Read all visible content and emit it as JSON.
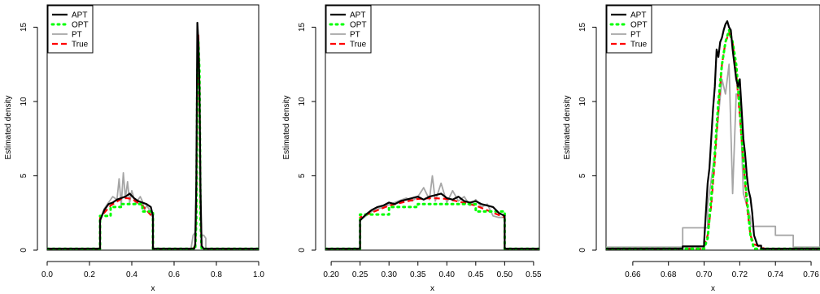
{
  "chart_data": [
    {
      "type": "line",
      "xlabel": "x",
      "ylabel": "Estimated density",
      "xlim": [
        0.0,
        1.0
      ],
      "ylim": [
        0,
        16.5
      ],
      "xticks": [
        "0.0",
        "0.2",
        "0.4",
        "0.6",
        "0.8",
        "1.0"
      ],
      "yticks": [
        "0",
        "5",
        "10",
        "15"
      ],
      "legend": {
        "position": "top-left",
        "entries": [
          "APT",
          "OPT",
          "PT",
          "True"
        ]
      },
      "series": [
        {
          "name": "PT",
          "color": "#a6a6a6",
          "style": "solid",
          "x": [
            0.0,
            0.25,
            0.25,
            0.27,
            0.29,
            0.31,
            0.33,
            0.34,
            0.35,
            0.36,
            0.37,
            0.38,
            0.39,
            0.4,
            0.41,
            0.42,
            0.43,
            0.44,
            0.45,
            0.46,
            0.47,
            0.48,
            0.49,
            0.5,
            0.5,
            0.68,
            0.69,
            0.7,
            0.705,
            0.71,
            0.715,
            0.72,
            0.725,
            0.73,
            0.74,
            0.75,
            0.75,
            1.0
          ],
          "y": [
            0.1,
            0.1,
            2.0,
            2.8,
            3.2,
            3.6,
            3.4,
            4.8,
            3.0,
            5.2,
            3.5,
            4.6,
            3.2,
            4.0,
            3.5,
            3.1,
            3.4,
            3.6,
            3.3,
            2.7,
            3.0,
            2.8,
            2.4,
            2.2,
            0.1,
            0.1,
            1.0,
            1.2,
            4.0,
            12.5,
            12.0,
            10.0,
            2.5,
            1.0,
            1.0,
            0.8,
            0.1,
            0.1
          ]
        },
        {
          "name": "True",
          "color": "#ff0000",
          "style": "dashed",
          "x": [
            0.0,
            0.25,
            0.25,
            0.3,
            0.35,
            0.375,
            0.4,
            0.45,
            0.5,
            0.5,
            0.69,
            0.7,
            0.705,
            0.71,
            0.715,
            0.72,
            0.725,
            0.73,
            0.74,
            1.0
          ],
          "y": [
            0.1,
            0.1,
            2.2,
            3.0,
            3.45,
            3.5,
            3.45,
            3.0,
            2.2,
            0.1,
            0.1,
            0.3,
            3.0,
            11.0,
            14.5,
            11.0,
            3.0,
            0.3,
            0.1,
            0.1
          ]
        },
        {
          "name": "OPT",
          "color": "#00ff00",
          "style": "dotted",
          "x": [
            0.0,
            0.25,
            0.25,
            0.3,
            0.3,
            0.35,
            0.35,
            0.45,
            0.45,
            0.5,
            0.5,
            0.7,
            0.705,
            0.71,
            0.715,
            0.72,
            0.725,
            0.73,
            1.0
          ],
          "y": [
            0.1,
            0.1,
            2.3,
            2.3,
            2.9,
            2.9,
            3.1,
            3.1,
            2.6,
            2.6,
            0.1,
            0.1,
            2.0,
            12.0,
            14.0,
            12.0,
            2.0,
            0.1,
            0.1
          ]
        },
        {
          "name": "APT",
          "color": "#000000",
          "style": "solid",
          "x": [
            0.0,
            0.25,
            0.25,
            0.27,
            0.29,
            0.31,
            0.33,
            0.35,
            0.37,
            0.39,
            0.41,
            0.43,
            0.45,
            0.47,
            0.49,
            0.5,
            0.5,
            0.695,
            0.7,
            0.705,
            0.71,
            0.715,
            0.72,
            0.725,
            0.73,
            0.74,
            1.0
          ],
          "y": [
            0.1,
            0.1,
            2.0,
            2.7,
            3.1,
            3.2,
            3.4,
            3.5,
            3.6,
            3.8,
            3.5,
            3.3,
            3.2,
            3.1,
            2.9,
            2.3,
            0.1,
            0.1,
            0.4,
            4.5,
            15.3,
            14.0,
            11.0,
            4.0,
            0.3,
            0.1,
            0.1
          ]
        }
      ]
    },
    {
      "type": "line",
      "xlabel": "x",
      "ylabel": "Estimated density",
      "xlim": [
        0.19,
        0.56
      ],
      "ylim": [
        0,
        16.5
      ],
      "xticks": [
        "0.20",
        "0.25",
        "0.30",
        "0.35",
        "0.40",
        "0.45",
        "0.50",
        "0.55"
      ],
      "yticks": [
        "0",
        "5",
        "10",
        "15"
      ],
      "legend": {
        "position": "top-left",
        "entries": [
          "APT",
          "OPT",
          "PT",
          "True"
        ]
      },
      "series": [
        {
          "name": "PT",
          "color": "#a6a6a6",
          "style": "solid",
          "x": [
            0.19,
            0.25,
            0.25,
            0.27,
            0.29,
            0.31,
            0.33,
            0.34,
            0.35,
            0.36,
            0.37,
            0.375,
            0.38,
            0.39,
            0.4,
            0.41,
            0.42,
            0.43,
            0.44,
            0.45,
            0.46,
            0.47,
            0.48,
            0.49,
            0.5,
            0.5,
            0.56
          ],
          "y": [
            0.1,
            0.1,
            2.0,
            2.6,
            2.9,
            3.2,
            3.5,
            3.3,
            3.6,
            4.2,
            3.4,
            5.0,
            3.3,
            4.5,
            3.2,
            4.0,
            3.3,
            3.6,
            3.0,
            3.4,
            2.9,
            3.1,
            2.3,
            2.2,
            2.2,
            0.1,
            0.1
          ]
        },
        {
          "name": "True",
          "color": "#ff0000",
          "style": "dashed",
          "x": [
            0.19,
            0.25,
            0.25,
            0.3,
            0.35,
            0.375,
            0.4,
            0.45,
            0.5,
            0.5,
            0.56
          ],
          "y": [
            0.1,
            0.1,
            2.2,
            3.0,
            3.45,
            3.5,
            3.45,
            3.0,
            2.2,
            0.1,
            0.1
          ]
        },
        {
          "name": "OPT",
          "color": "#00ff00",
          "style": "dotted",
          "x": [
            0.19,
            0.25,
            0.25,
            0.3,
            0.3,
            0.35,
            0.35,
            0.45,
            0.45,
            0.5,
            0.5,
            0.56
          ],
          "y": [
            0.1,
            0.1,
            2.4,
            2.4,
            2.9,
            2.9,
            3.1,
            3.1,
            2.6,
            2.6,
            0.1,
            0.1
          ]
        },
        {
          "name": "APT",
          "color": "#000000",
          "style": "solid",
          "x": [
            0.19,
            0.25,
            0.25,
            0.26,
            0.27,
            0.28,
            0.29,
            0.3,
            0.31,
            0.32,
            0.33,
            0.34,
            0.35,
            0.36,
            0.37,
            0.38,
            0.39,
            0.4,
            0.41,
            0.42,
            0.43,
            0.44,
            0.45,
            0.46,
            0.47,
            0.48,
            0.49,
            0.5,
            0.5,
            0.56
          ],
          "y": [
            0.1,
            0.1,
            2.0,
            2.4,
            2.7,
            2.9,
            3.0,
            3.2,
            3.1,
            3.3,
            3.4,
            3.5,
            3.6,
            3.4,
            3.6,
            3.7,
            3.8,
            3.5,
            3.4,
            3.6,
            3.3,
            3.2,
            3.3,
            3.1,
            3.0,
            2.9,
            2.5,
            2.3,
            0.1,
            0.1
          ]
        }
      ]
    },
    {
      "type": "line",
      "xlabel": "x",
      "ylabel": "Estimated density",
      "xlim": [
        0.645,
        0.765
      ],
      "ylim": [
        0,
        16.5
      ],
      "xticks": [
        "0.66",
        "0.68",
        "0.70",
        "0.72",
        "0.74",
        "0.76"
      ],
      "yticks": [
        "0",
        "5",
        "10",
        "15"
      ],
      "legend": {
        "position": "top-left",
        "entries": [
          "APT",
          "OPT",
          "PT",
          "True"
        ]
      },
      "series": [
        {
          "name": "PT",
          "color": "#a6a6a6",
          "style": "solid",
          "x": [
            0.645,
            0.688,
            0.688,
            0.702,
            0.702,
            0.706,
            0.708,
            0.71,
            0.712,
            0.714,
            0.716,
            0.718,
            0.72,
            0.722,
            0.724,
            0.726,
            0.726,
            0.74,
            0.74,
            0.75,
            0.75,
            0.765
          ],
          "y": [
            0.2,
            0.2,
            1.5,
            1.5,
            3.0,
            6.5,
            9.0,
            11.5,
            10.5,
            12.5,
            3.8,
            10.5,
            10.5,
            3.8,
            3.0,
            2.2,
            1.6,
            1.6,
            1.0,
            1.0,
            0.2,
            0.2
          ]
        },
        {
          "name": "True",
          "color": "#ff0000",
          "style": "dashed",
          "x": [
            0.645,
            0.698,
            0.7,
            0.702,
            0.704,
            0.706,
            0.708,
            0.71,
            0.712,
            0.714,
            0.716,
            0.718,
            0.72,
            0.722,
            0.724,
            0.726,
            0.728,
            0.73,
            0.734,
            0.765
          ],
          "y": [
            0.1,
            0.1,
            0.3,
            1.0,
            3.0,
            6.0,
            9.5,
            12.5,
            14.0,
            14.6,
            14.0,
            12.0,
            9.0,
            6.0,
            3.0,
            1.0,
            0.4,
            0.3,
            0.1,
            0.1
          ]
        },
        {
          "name": "OPT",
          "color": "#00ff00",
          "style": "dotted",
          "x": [
            0.645,
            0.7,
            0.702,
            0.704,
            0.706,
            0.708,
            0.71,
            0.712,
            0.714,
            0.716,
            0.718,
            0.72,
            0.722,
            0.724,
            0.726,
            0.728,
            0.765
          ],
          "y": [
            0.1,
            0.1,
            0.8,
            3.5,
            6.5,
            10.0,
            12.5,
            14.0,
            14.8,
            14.0,
            12.5,
            9.5,
            6.0,
            3.5,
            1.0,
            0.1,
            0.1
          ]
        },
        {
          "name": "APT",
          "color": "#000000",
          "style": "solid",
          "x": [
            0.645,
            0.688,
            0.688,
            0.7,
            0.7,
            0.702,
            0.703,
            0.704,
            0.705,
            0.706,
            0.707,
            0.708,
            0.709,
            0.71,
            0.711,
            0.712,
            0.713,
            0.714,
            0.715,
            0.716,
            0.717,
            0.718,
            0.719,
            0.72,
            0.721,
            0.722,
            0.723,
            0.724,
            0.725,
            0.726,
            0.727,
            0.728,
            0.73,
            0.732,
            0.732,
            0.765
          ],
          "y": [
            0.1,
            0.1,
            0.25,
            0.25,
            0.5,
            4.5,
            5.5,
            7.5,
            9.5,
            11.0,
            13.5,
            13.0,
            14.0,
            14.3,
            14.8,
            15.2,
            15.4,
            15.0,
            14.8,
            13.5,
            12.5,
            11.5,
            11.0,
            11.5,
            9.5,
            7.5,
            6.5,
            5.0,
            4.0,
            3.5,
            2.5,
            1.0,
            0.3,
            0.3,
            0.1,
            0.1
          ]
        }
      ]
    }
  ]
}
